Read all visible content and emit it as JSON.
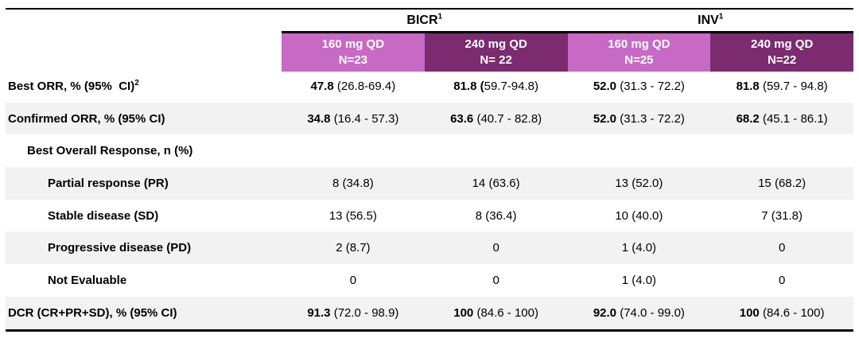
{
  "colors": {
    "header_light_pink": "#C869C6",
    "header_dark_purple": "#7C2B70",
    "row_shade_gray": "#F2F2F2",
    "rule_black": "#000000"
  },
  "header": {
    "groups": [
      {
        "label": "BICR",
        "sup": "1"
      },
      {
        "label": "INV",
        "sup": "1"
      }
    ],
    "columns": [
      {
        "dose": "160 mg QD",
        "n": "N=23",
        "tone": "light"
      },
      {
        "dose": "240 mg QD",
        "n": "N= 22",
        "tone": "dark"
      },
      {
        "dose": "160 mg QD",
        "n": "N=25",
        "tone": "light"
      },
      {
        "dose": "240 mg QD",
        "n": "N=22",
        "tone": "dark"
      }
    ]
  },
  "rows": [
    {
      "label": "Best ORR, % (95%  CI)",
      "sup": "2",
      "indent": 0,
      "shaded": false,
      "cells": [
        {
          "b": "47.8",
          "rest": " (26.8-69.4)"
        },
        {
          "b": "81.8 (",
          "rest": "59.7-94.8)"
        },
        {
          "b": "52.0",
          "rest": " (31.3 - 72.2)"
        },
        {
          "b": "81.8",
          "rest": " (59.7 - 94.8)"
        }
      ]
    },
    {
      "label": "Confirmed ORR, % (95% CI)",
      "sup": "",
      "indent": 0,
      "shaded": true,
      "cells": [
        {
          "b": "34.8",
          "rest": " (16.4 - 57.3)"
        },
        {
          "b": "63.6",
          "rest": " (40.7 - 82.8)"
        },
        {
          "b": "52.0",
          "rest": " (31.3 - 72.2)"
        },
        {
          "b": "68.2",
          "rest": " (45.1 - 86.1)"
        }
      ]
    },
    {
      "label": "Best Overall Response, n (%)",
      "sup": "",
      "indent": 1,
      "shaded": false,
      "cells": [
        {
          "b": "",
          "rest": ""
        },
        {
          "b": "",
          "rest": ""
        },
        {
          "b": "",
          "rest": ""
        },
        {
          "b": "",
          "rest": ""
        }
      ]
    },
    {
      "label": "Partial response (PR)",
      "sup": "",
      "indent": 2,
      "shaded": true,
      "cells": [
        {
          "b": "",
          "rest": "8 (34.8)"
        },
        {
          "b": "",
          "rest": "14 (63.6)"
        },
        {
          "b": "",
          "rest": "13 (52.0)"
        },
        {
          "b": "",
          "rest": "15 (68.2)"
        }
      ]
    },
    {
      "label": "Stable disease (SD)",
      "sup": "",
      "indent": 2,
      "shaded": false,
      "cells": [
        {
          "b": "",
          "rest": "13 (56.5)"
        },
        {
          "b": "",
          "rest": "8 (36.4)"
        },
        {
          "b": "",
          "rest": "10 (40.0)"
        },
        {
          "b": "",
          "rest": "7 (31.8)"
        }
      ]
    },
    {
      "label": "Progressive disease (PD)",
      "sup": "",
      "indent": 2,
      "shaded": true,
      "cells": [
        {
          "b": "",
          "rest": "2 (8.7)"
        },
        {
          "b": "",
          "rest": "0"
        },
        {
          "b": "",
          "rest": "1 (4.0)"
        },
        {
          "b": "",
          "rest": "0"
        }
      ]
    },
    {
      "label": "Not Evaluable",
      "sup": "",
      "indent": 2,
      "shaded": false,
      "cells": [
        {
          "b": "",
          "rest": "0"
        },
        {
          "b": "",
          "rest": "0"
        },
        {
          "b": "",
          "rest": "1 (4.0)"
        },
        {
          "b": "",
          "rest": "0"
        }
      ]
    },
    {
      "label": "DCR (CR+PR+SD), % (95% CI)",
      "sup": "",
      "indent": 0,
      "shaded": true,
      "cells": [
        {
          "b": "91.3",
          "rest": " (72.0 - 98.9)"
        },
        {
          "b": "100",
          "rest": " (84.6 - 100)"
        },
        {
          "b": "92.0",
          "rest": " (74.0 - 99.0)"
        },
        {
          "b": "100",
          "rest": " (84.6 - 100)"
        }
      ]
    }
  ]
}
